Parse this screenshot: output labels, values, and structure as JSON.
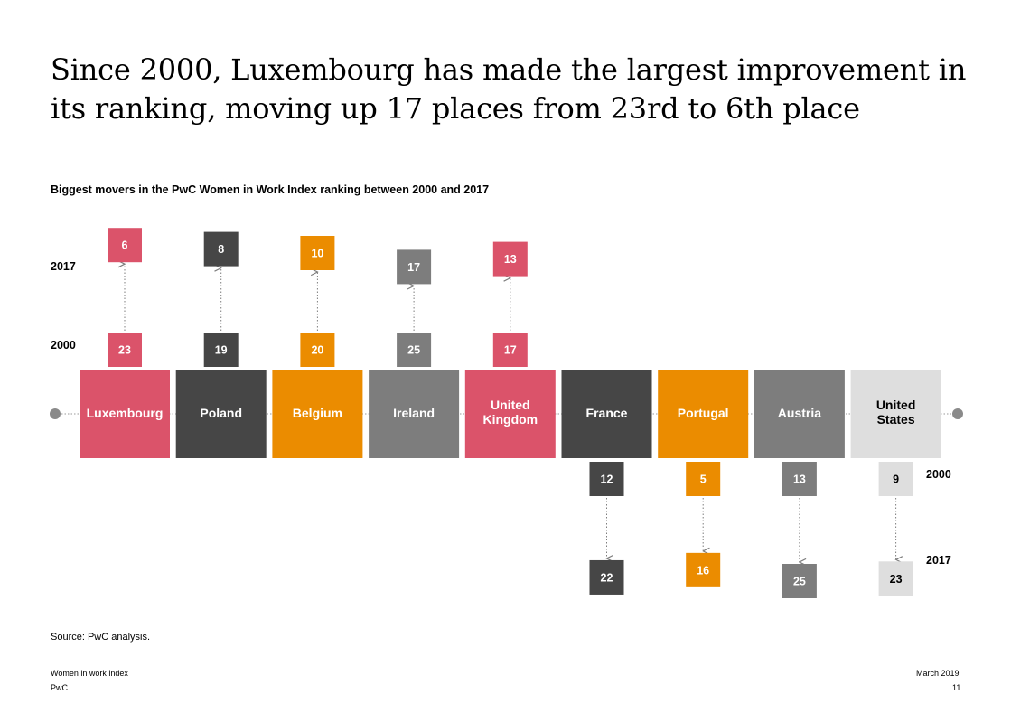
{
  "headline": "Since 2000, Luxembourg has made the largest improvement in its ranking, moving up 17 places from 23rd to 6th place",
  "subtitle": "Biggest movers in the PwC Women in Work Index ranking between 2000 and 2017",
  "year_labels": {
    "upper_2017": "2017",
    "upper_2000": "2000",
    "lower_2000": "2000",
    "lower_2017": "2017"
  },
  "colors": {
    "pink": "#db536a",
    "dark": "#464646",
    "orange": "#eb8c00",
    "grey": "#7d7d7d",
    "light": "#dedede"
  },
  "chart_data": {
    "type": "table",
    "years": [
      "2000",
      "2017"
    ],
    "countries": [
      {
        "label": "Luxembourg",
        "rank_2000": "23",
        "rank_2017": "6",
        "direction": "up",
        "color": "#db536a"
      },
      {
        "label": "Poland",
        "rank_2000": "19",
        "rank_2017": "8",
        "direction": "up",
        "color": "#464646"
      },
      {
        "label": "Belgium",
        "rank_2000": "20",
        "rank_2017": "10",
        "direction": "up",
        "color": "#eb8c00"
      },
      {
        "label": "Ireland",
        "rank_2000": "25",
        "rank_2017": "17",
        "direction": "up",
        "color": "#7d7d7d"
      },
      {
        "label": "United Kingdom",
        "rank_2000": "17",
        "rank_2017": "13",
        "direction": "up",
        "color": "#db536a"
      },
      {
        "label": "France",
        "rank_2000": "12",
        "rank_2017": "22",
        "direction": "down",
        "color": "#464646"
      },
      {
        "label": "Portugal",
        "rank_2000": "5",
        "rank_2017": "16",
        "direction": "down",
        "color": "#eb8c00"
      },
      {
        "label": "Austria",
        "rank_2000": "13",
        "rank_2017": "25",
        "direction": "down",
        "color": "#7d7d7d"
      },
      {
        "label": "United States",
        "rank_2000": "9",
        "rank_2017": "23",
        "direction": "down",
        "color": "#dedede"
      }
    ]
  },
  "source": "Source: PwC analysis.",
  "footer": {
    "left_line1": "Women in work index",
    "left_line2": "PwC",
    "right_line1": "March 2019",
    "right_line2": "11"
  }
}
